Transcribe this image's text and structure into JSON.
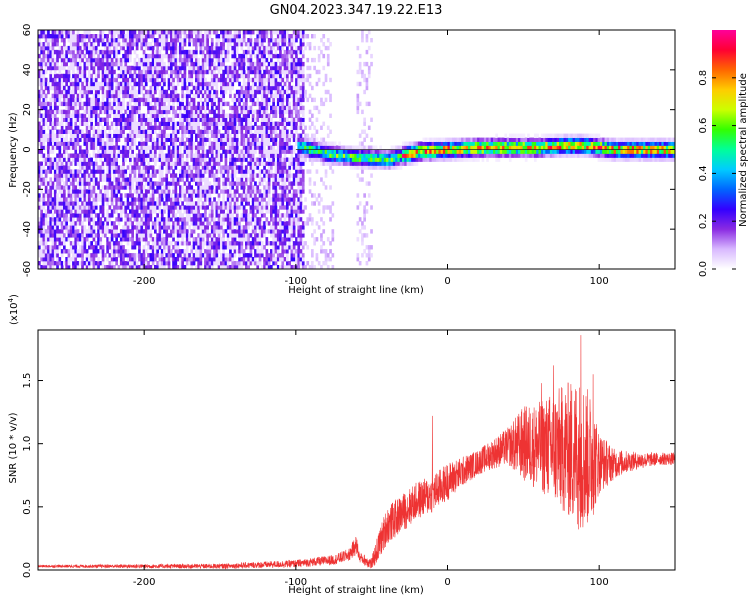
{
  "figure": {
    "title": "GN04.2023.347.19.22.E13"
  },
  "chart_data": [
    {
      "type": "heatmap",
      "xlabel": "Height of straight line (km)",
      "ylabel": "Frequency (Hz)",
      "xlim": [
        -270,
        150
      ],
      "ylim": [
        -60,
        60
      ],
      "xticks": [
        -200,
        -100,
        0,
        100
      ],
      "yticks": [
        -60,
        -40,
        -20,
        0,
        20,
        40,
        60
      ],
      "colorbar": {
        "label": "Normalized spectral amplitude",
        "range": [
          0.0,
          1.0
        ],
        "ticks": [
          "0.0",
          "0.2",
          "0.4",
          "0.6",
          "0.8"
        ],
        "colormap": [
          "#ffffff",
          "#d8b8ff",
          "#8a2be2",
          "#3300ff",
          "#0066ff",
          "#00ccff",
          "#00ff99",
          "#33ff00",
          "#ccff00",
          "#ffcc00",
          "#ff6600",
          "#ff0033",
          "#ff0099"
        ]
      },
      "regions": [
        {
          "name": "noise",
          "x_range": [
            -270,
            -95
          ],
          "freq_range": [
            -60,
            60
          ],
          "amplitude": 0.15
        },
        {
          "name": "noise-tail",
          "x_range": [
            -95,
            -75
          ],
          "freq_range": [
            -60,
            60
          ],
          "amplitude": 0.05
        },
        {
          "name": "noise-patch",
          "x_range": [
            -60,
            -50
          ],
          "freq_range": [
            -60,
            60
          ],
          "amplitude": 0.05
        },
        {
          "name": "signal-band",
          "x_range": [
            -100,
            150
          ],
          "center_freq": [
            [
              -100,
              2
            ],
            [
              -80,
              -2
            ],
            [
              -60,
              -4
            ],
            [
              -40,
              -5
            ],
            [
              -20,
              -1
            ],
            [
              0,
              0
            ],
            [
              20,
              1
            ],
            [
              40,
              1
            ],
            [
              60,
              1
            ],
            [
              75,
              2
            ],
            [
              90,
              2
            ],
            [
              110,
              0
            ],
            [
              150,
              0
            ]
          ],
          "peak_amplitude": 1.0
        }
      ]
    },
    {
      "type": "line",
      "xlabel": "Height of straight line (km)",
      "ylabel": "SNR (10 * v/v)",
      "scale_label": "(x10",
      "scale_exponent": "4",
      "xlim": [
        -270,
        150
      ],
      "ylim": [
        0,
        1.9
      ],
      "xticks": [
        -200,
        -100,
        0,
        100
      ],
      "yticks": [
        "0.0",
        "0.5",
        "1.0",
        "1.5"
      ],
      "line_color": "#ee3333",
      "envelope": {
        "x": [
          -270,
          -150,
          -100,
          -75,
          -65,
          -60,
          -58,
          -50,
          -45,
          -40,
          -30,
          -20,
          -10,
          0,
          10,
          20,
          30,
          40,
          50,
          60,
          70,
          80,
          85,
          90,
          95,
          100,
          110,
          120,
          130,
          140,
          150
        ],
        "mean": [
          0.03,
          0.03,
          0.05,
          0.08,
          0.12,
          0.2,
          0.1,
          0.05,
          0.2,
          0.35,
          0.45,
          0.55,
          0.6,
          0.7,
          0.78,
          0.85,
          0.92,
          0.98,
          1.0,
          0.98,
          0.97,
          0.95,
          0.93,
          0.9,
          0.88,
          0.85,
          0.84,
          0.86,
          0.87,
          0.88,
          0.88
        ],
        "spread": [
          0.01,
          0.02,
          0.03,
          0.04,
          0.05,
          0.08,
          0.04,
          0.05,
          0.12,
          0.15,
          0.15,
          0.15,
          0.15,
          0.15,
          0.12,
          0.1,
          0.12,
          0.15,
          0.3,
          0.35,
          0.45,
          0.55,
          0.6,
          0.6,
          0.5,
          0.25,
          0.12,
          0.08,
          0.06,
          0.05,
          0.05
        ]
      },
      "spikes": [
        {
          "x": -10,
          "y": 1.22
        },
        {
          "x": 88,
          "y": 1.86
        },
        {
          "x": 70,
          "y": 1.62
        },
        {
          "x": 96,
          "y": 1.55
        },
        {
          "x": 62,
          "y": 1.48
        }
      ]
    }
  ]
}
